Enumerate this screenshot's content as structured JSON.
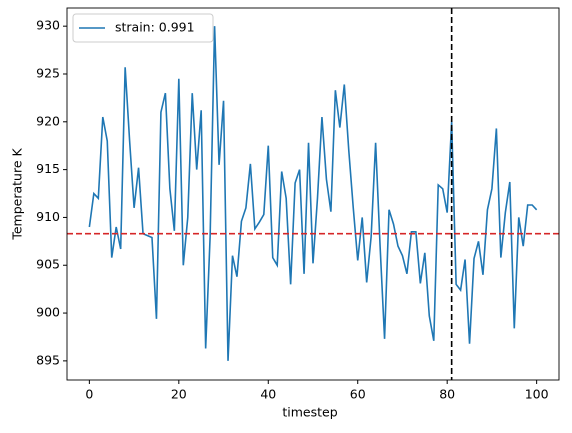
{
  "chart_data": {
    "type": "line",
    "xlabel": "timestep",
    "ylabel": "Temperature K",
    "x": [
      0,
      1,
      2,
      3,
      4,
      5,
      6,
      7,
      8,
      9,
      10,
      11,
      12,
      13,
      14,
      15,
      16,
      17,
      18,
      19,
      20,
      21,
      22,
      23,
      24,
      25,
      26,
      27,
      28,
      29,
      30,
      31,
      32,
      33,
      34,
      35,
      36,
      37,
      38,
      39,
      40,
      41,
      42,
      43,
      44,
      45,
      46,
      47,
      48,
      49,
      50,
      51,
      52,
      53,
      54,
      55,
      56,
      57,
      58,
      59,
      60,
      61,
      62,
      63,
      64,
      65,
      66,
      67,
      68,
      69,
      70,
      71,
      72,
      73,
      74,
      75,
      76,
      77,
      78,
      79,
      80,
      81,
      82,
      83,
      84,
      85,
      86,
      87,
      88,
      89,
      90,
      91,
      92,
      93,
      94,
      95,
      96,
      97,
      98,
      99,
      100
    ],
    "series": [
      {
        "name": "strain: 0.991",
        "color": "#1f77b4",
        "values": [
          909,
          912.5,
          912,
          920.5,
          918,
          905.8,
          909,
          906.7,
          925.7,
          918,
          911,
          915.2,
          908.3,
          908.1,
          907.9,
          899.4,
          921,
          923,
          913,
          908.6,
          924.5,
          905,
          910,
          923,
          915,
          921.2,
          896.3,
          908,
          930,
          915.5,
          922.2,
          895,
          906,
          903.8,
          909.6,
          911,
          915.6,
          908.8,
          909.5,
          910.3,
          917.5,
          905.8,
          905,
          914.8,
          912,
          903,
          913.6,
          915,
          904.1,
          917.8,
          905.2,
          912,
          920.5,
          914,
          910.6,
          923.3,
          919.4,
          923.9,
          917,
          911,
          905.5,
          910,
          903.2,
          908,
          917.8,
          907,
          897.3,
          910.8,
          909.3,
          907,
          906,
          904.1,
          908.5,
          908.5,
          903.1,
          906.3,
          899.7,
          897.1,
          913.4,
          913,
          910.5,
          920,
          903,
          902.4,
          905.6,
          896.8,
          905.7,
          907.5,
          904,
          910.8,
          913,
          919.3,
          905.8,
          910.5,
          913.7,
          898.4,
          910,
          907,
          911.3,
          911.3,
          910.8
        ]
      }
    ],
    "hline": {
      "y": 908.3,
      "color": "#d62728"
    },
    "vline": {
      "x": 81,
      "color": "#000000"
    },
    "xlim": [
      -5,
      105
    ],
    "xticks": [
      0,
      20,
      40,
      60,
      80,
      100
    ],
    "ylim": [
      893,
      931.9
    ],
    "yticks": [
      895,
      900,
      905,
      910,
      915,
      920,
      925,
      930
    ],
    "legend": "upper left"
  }
}
